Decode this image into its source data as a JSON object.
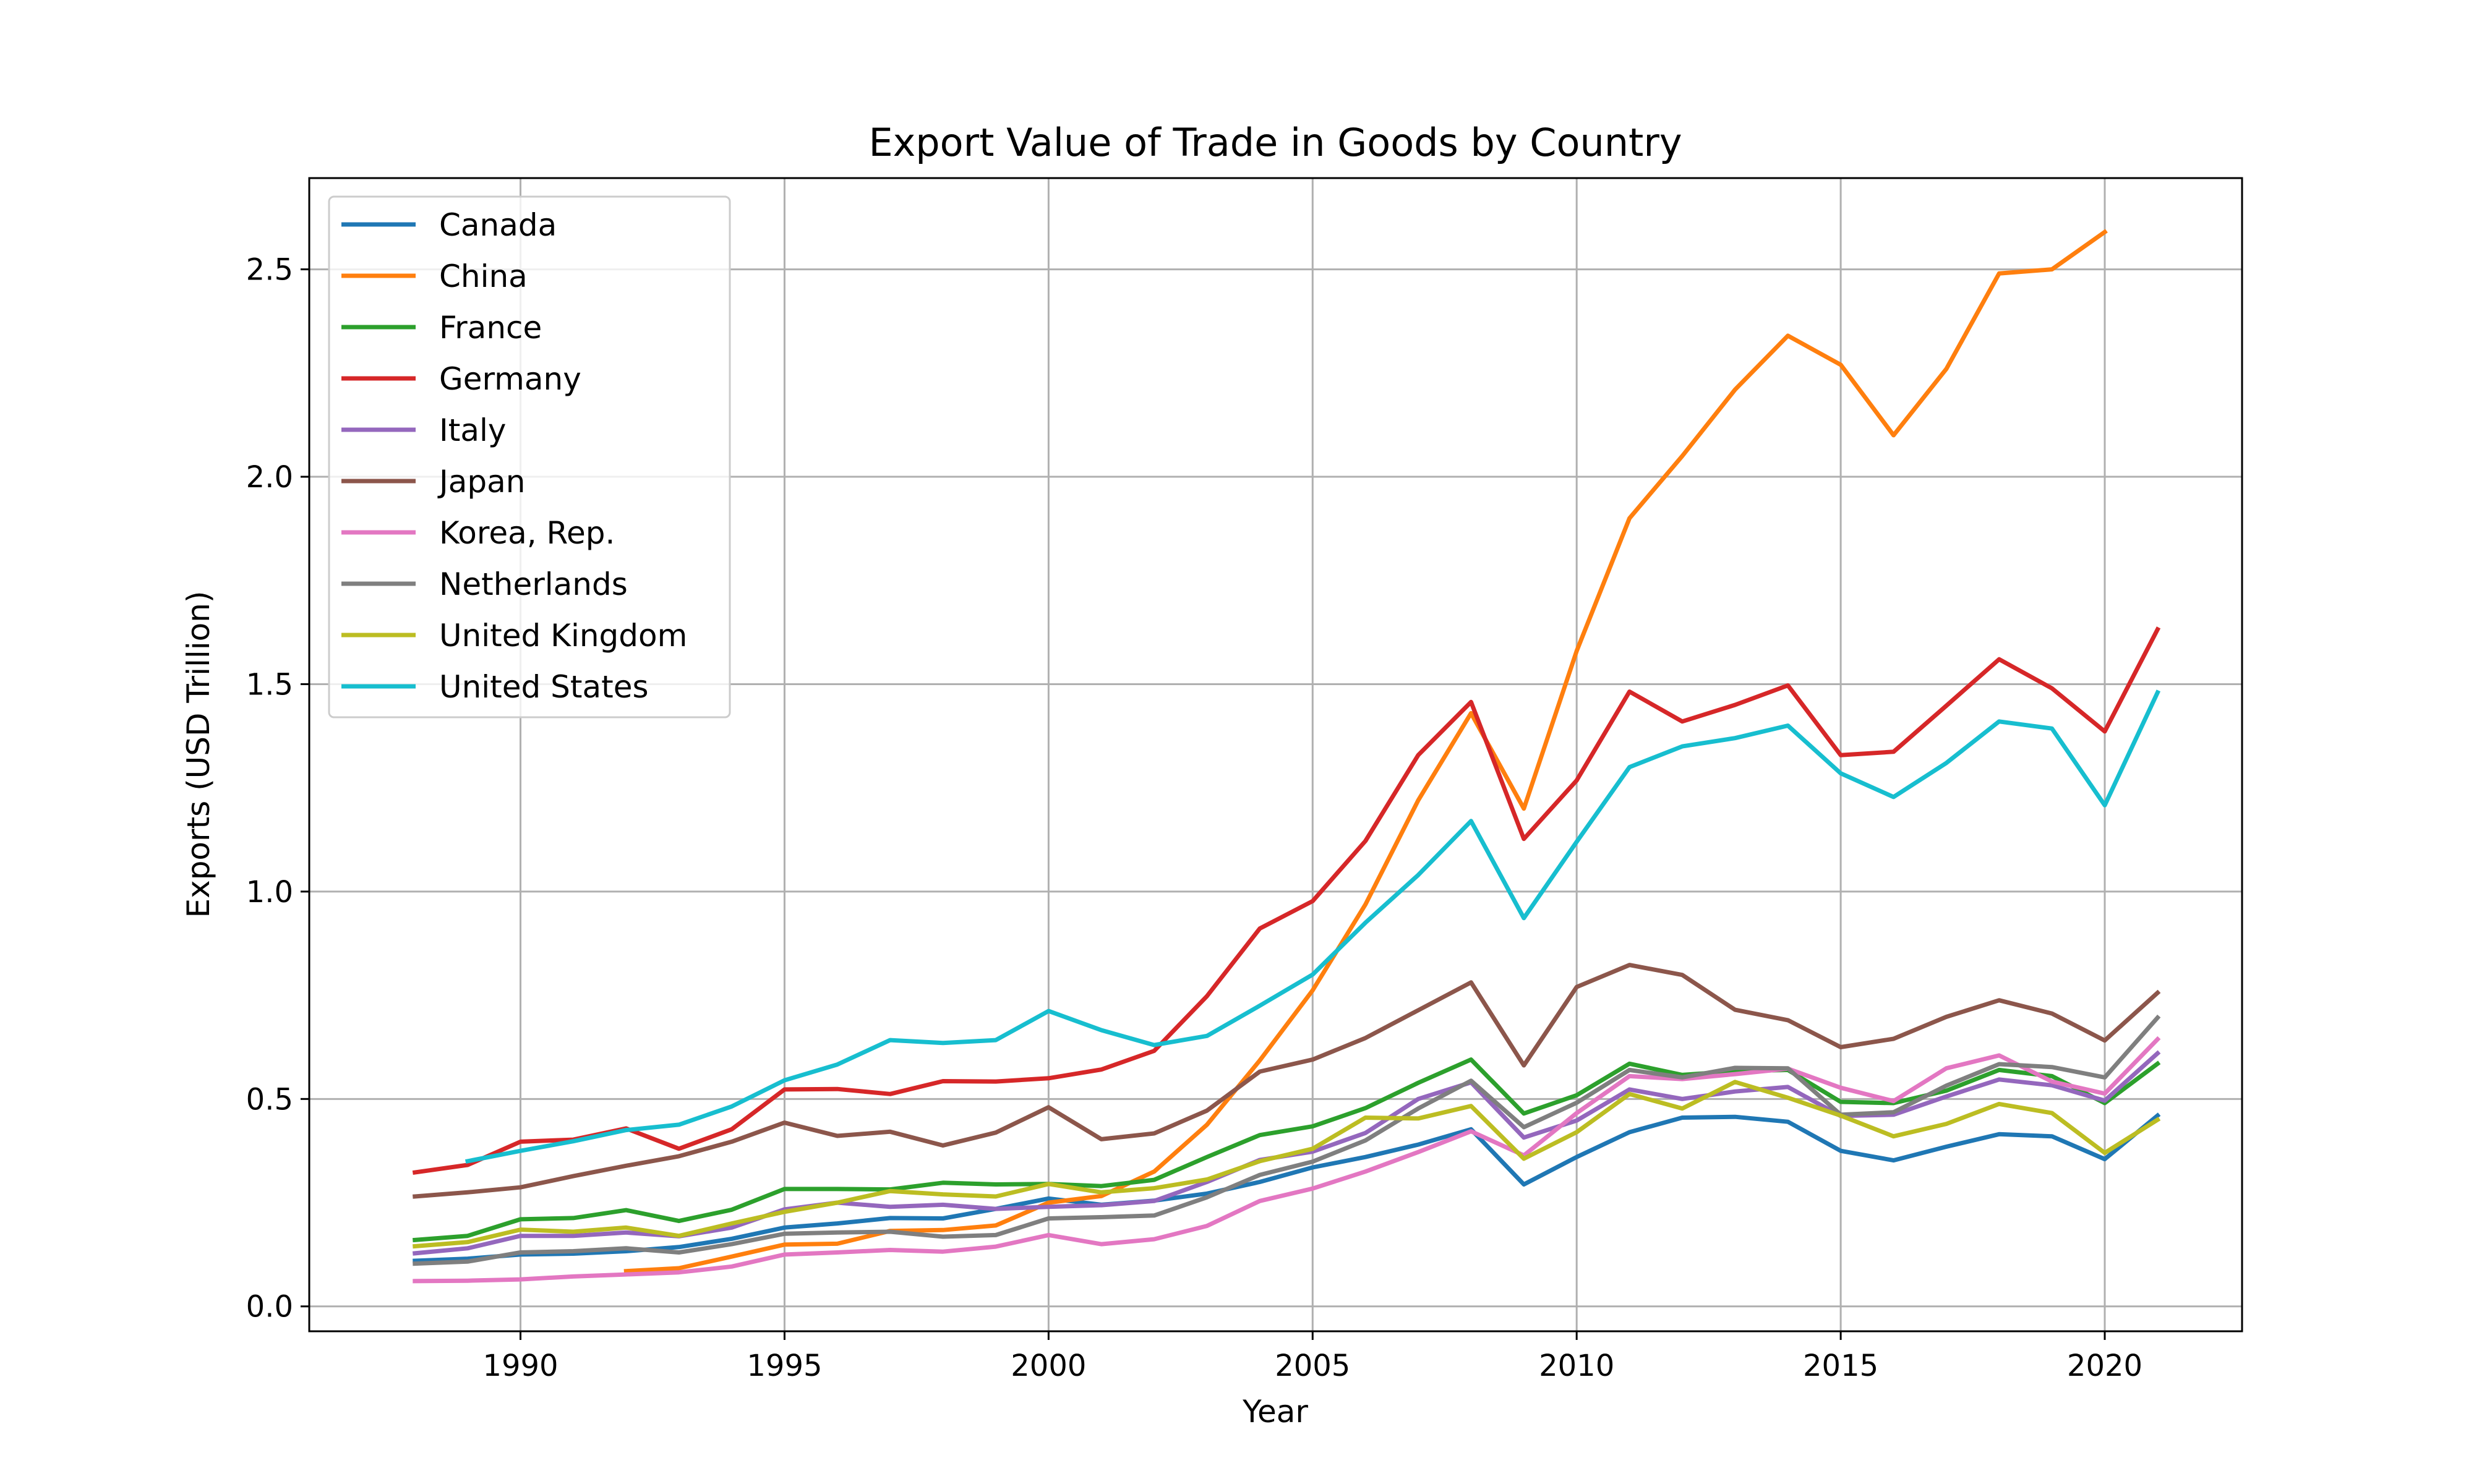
{
  "chart_data": {
    "type": "line",
    "title": "Export Value of Trade in Goods by Country",
    "xlabel": "Year",
    "ylabel": "Exports (USD Trillion)",
    "xlim": [
      1986.0,
      2022.6
    ],
    "ylim": [
      -0.06,
      2.72
    ],
    "xticks": [
      1990,
      1995,
      2000,
      2005,
      2010,
      2015,
      2020
    ],
    "yticks": [
      0.0,
      0.5,
      1.0,
      1.5,
      2.0,
      2.5
    ],
    "xtick_labels": [
      "1990",
      "1995",
      "2000",
      "2005",
      "2010",
      "2015",
      "2020"
    ],
    "ytick_labels": [
      "0.0",
      "0.5",
      "1.0",
      "1.5",
      "2.0",
      "2.5"
    ],
    "grid": true,
    "legend_position": "top-left",
    "series": [
      {
        "name": "Canada",
        "color": "#1f77b4",
        "start_year": 1988,
        "values": [
          0.11,
          0.115,
          0.125,
          0.127,
          0.133,
          0.143,
          0.163,
          0.19,
          0.2,
          0.213,
          0.212,
          0.235,
          0.26,
          0.245,
          0.255,
          0.272,
          0.3,
          0.335,
          0.36,
          0.39,
          0.427,
          0.294,
          0.36,
          0.42,
          0.455,
          0.457,
          0.445,
          0.375,
          0.352,
          0.385,
          0.415,
          0.41,
          0.355,
          0.46
        ]
      },
      {
        "name": "China",
        "color": "#ff7f0e",
        "start_year": 1992,
        "values": [
          0.085,
          0.092,
          0.12,
          0.149,
          0.151,
          0.182,
          0.184,
          0.195,
          0.25,
          0.266,
          0.325,
          0.438,
          0.593,
          0.762,
          0.969,
          1.22,
          1.43,
          1.2,
          1.58,
          1.9,
          2.05,
          2.21,
          2.34,
          2.27,
          2.1,
          2.26,
          2.49,
          2.5,
          2.59
        ]
      },
      {
        "name": "France",
        "color": "#2ca02c",
        "start_year": 1988,
        "values": [
          0.16,
          0.17,
          0.21,
          0.213,
          0.232,
          0.206,
          0.233,
          0.283,
          0.283,
          0.282,
          0.298,
          0.294,
          0.295,
          0.29,
          0.305,
          0.36,
          0.413,
          0.434,
          0.478,
          0.539,
          0.595,
          0.465,
          0.509,
          0.585,
          0.558,
          0.567,
          0.57,
          0.493,
          0.49,
          0.52,
          0.57,
          0.555,
          0.49,
          0.585
        ]
      },
      {
        "name": "Germany",
        "color": "#d62728",
        "start_year": 1988,
        "values": [
          0.323,
          0.341,
          0.397,
          0.402,
          0.429,
          0.38,
          0.427,
          0.523,
          0.524,
          0.512,
          0.543,
          0.542,
          0.55,
          0.571,
          0.616,
          0.748,
          0.911,
          0.977,
          1.122,
          1.329,
          1.457,
          1.127,
          1.268,
          1.482,
          1.41,
          1.45,
          1.497,
          1.329,
          1.337,
          1.448,
          1.56,
          1.49,
          1.386,
          1.632
        ]
      },
      {
        "name": "Italy",
        "color": "#9467bd",
        "start_year": 1988,
        "values": [
          0.128,
          0.14,
          0.17,
          0.17,
          0.178,
          0.169,
          0.19,
          0.234,
          0.25,
          0.24,
          0.245,
          0.235,
          0.24,
          0.244,
          0.254,
          0.3,
          0.353,
          0.373,
          0.418,
          0.5,
          0.54,
          0.407,
          0.448,
          0.523,
          0.5,
          0.518,
          0.529,
          0.459,
          0.462,
          0.506,
          0.547,
          0.533,
          0.496,
          0.61
        ]
      },
      {
        "name": "Japan",
        "color": "#8c564b",
        "start_year": 1988,
        "values": [
          0.265,
          0.275,
          0.287,
          0.314,
          0.339,
          0.362,
          0.397,
          0.443,
          0.411,
          0.421,
          0.388,
          0.419,
          0.48,
          0.403,
          0.417,
          0.472,
          0.566,
          0.595,
          0.647,
          0.714,
          0.781,
          0.581,
          0.77,
          0.823,
          0.799,
          0.715,
          0.69,
          0.625,
          0.645,
          0.698,
          0.738,
          0.706,
          0.641,
          0.756
        ]
      },
      {
        "name": "Korea, Rep.",
        "color": "#e377c2",
        "start_year": 1988,
        "values": [
          0.061,
          0.062,
          0.065,
          0.072,
          0.077,
          0.082,
          0.096,
          0.125,
          0.13,
          0.136,
          0.132,
          0.144,
          0.172,
          0.15,
          0.162,
          0.194,
          0.254,
          0.284,
          0.325,
          0.372,
          0.422,
          0.364,
          0.466,
          0.555,
          0.548,
          0.56,
          0.573,
          0.527,
          0.495,
          0.574,
          0.605,
          0.542,
          0.513,
          0.644
        ]
      },
      {
        "name": "Netherlands",
        "color": "#7f7f7f",
        "start_year": 1988,
        "values": [
          0.103,
          0.108,
          0.13,
          0.133,
          0.14,
          0.13,
          0.15,
          0.175,
          0.178,
          0.18,
          0.168,
          0.172,
          0.212,
          0.215,
          0.219,
          0.263,
          0.317,
          0.349,
          0.4,
          0.477,
          0.544,
          0.432,
          0.491,
          0.57,
          0.552,
          0.575,
          0.574,
          0.462,
          0.468,
          0.532,
          0.584,
          0.577,
          0.552,
          0.696
        ]
      },
      {
        "name": "United Kingdom",
        "color": "#bcbd22",
        "start_year": 1988,
        "values": [
          0.145,
          0.155,
          0.185,
          0.18,
          0.19,
          0.17,
          0.2,
          0.228,
          0.25,
          0.278,
          0.27,
          0.265,
          0.295,
          0.275,
          0.285,
          0.306,
          0.35,
          0.38,
          0.455,
          0.453,
          0.483,
          0.356,
          0.42,
          0.512,
          0.477,
          0.541,
          0.503,
          0.46,
          0.41,
          0.44,
          0.488,
          0.466,
          0.37,
          0.45
        ]
      },
      {
        "name": "United States",
        "color": "#17becf",
        "start_year": 1989,
        "values": [
          0.35,
          0.375,
          0.398,
          0.425,
          0.438,
          0.482,
          0.545,
          0.583,
          0.642,
          0.635,
          0.642,
          0.712,
          0.666,
          0.63,
          0.652,
          0.725,
          0.8,
          0.925,
          1.04,
          1.17,
          0.936,
          1.12,
          1.3,
          1.35,
          1.37,
          1.4,
          1.285,
          1.228,
          1.31,
          1.41,
          1.393,
          1.208,
          1.48
        ]
      }
    ]
  }
}
